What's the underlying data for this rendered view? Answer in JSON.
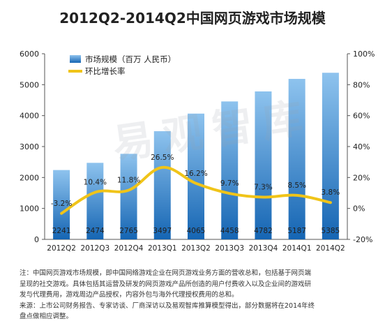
{
  "chart_data": {
    "type": "bar",
    "title": "2012Q2-2014Q2中国网页游戏市场规模",
    "categories": [
      "2012Q2",
      "2012Q3",
      "2012Q4",
      "2013Q1",
      "2013Q2",
      "2013Q3",
      "2013Q4",
      "2014Q1",
      "2014Q2"
    ],
    "series": [
      {
        "name": "市场规模（百万 人民币）",
        "type": "bar",
        "axis": "left",
        "values": [
          2241,
          2474,
          2765,
          3497,
          4065,
          4458,
          4782,
          5187,
          5385
        ],
        "labels": [
          "2241",
          "2474",
          "2765",
          "3497",
          "4065",
          "4458",
          "4782",
          "5187",
          "5385"
        ]
      },
      {
        "name": "环比增长率",
        "type": "line",
        "axis": "right",
        "values": [
          -3.2,
          10.4,
          11.8,
          26.5,
          16.2,
          9.7,
          7.3,
          8.5,
          3.8
        ],
        "labels": [
          "-3.2%",
          "10.4%",
          "11.8%",
          "26.5%",
          "16.2%",
          "9.7%",
          "7.3%",
          "8.5%",
          "3.8%"
        ]
      }
    ],
    "ylim": [
      0,
      6000
    ],
    "yticks": [
      "0",
      "1000",
      "2000",
      "3000",
      "4000",
      "5000",
      "6000"
    ],
    "y2lim": [
      -20,
      100
    ],
    "y2ticks": [
      "-20%",
      "0%",
      "20%",
      "40%",
      "60%",
      "80%",
      "100%"
    ],
    "legend_position": "top-left",
    "grid": false,
    "colors": {
      "bar_top": "#8ec3ee",
      "bar_bottom": "#1565b3",
      "line": "#f0c419"
    }
  },
  "watermark": "易观智库",
  "notes": [
    "注：中国网页游戏市场规模，即中国网络游戏企业在网页游戏业务方面的营收总和，包括基于网页端",
    "呈现的社交游戏。具体包括其运营及研发的网页游戏产品所创造的用户付费收入以及企业间的游戏研",
    "发与代理费用，游戏周边产品授权，内容外包与海外代理授权费用的总和。",
    "来源：上市公司财务报告、专家访谈、厂商深访以及易观智库推算模型得出，部分数据将在2014年终",
    "盘点做相应调整。"
  ]
}
